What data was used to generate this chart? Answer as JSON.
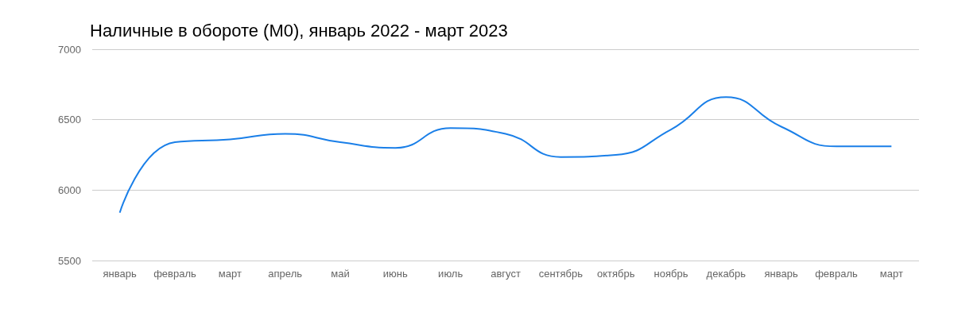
{
  "chart_data": {
    "type": "line",
    "title": "Наличные в обороте (М0), январь 2022 - март 2023",
    "categories": [
      "январь",
      "февраль",
      "март",
      "апрель",
      "май",
      "июнь",
      "июль",
      "август",
      "сентябрь",
      "октябрь",
      "ноябрь",
      "декабрь",
      "январь",
      "февраль",
      "март"
    ],
    "series": [
      {
        "color": "#1a7fe8",
        "values": [
          5840,
          6340,
          6360,
          6400,
          6340,
          6300,
          6440,
          6400,
          6235,
          6250,
          6430,
          6660,
          6450,
          6310,
          6310
        ]
      }
    ],
    "ylim": [
      5500,
      7000
    ],
    "yticks": [
      5500,
      6000,
      6500,
      7000
    ],
    "grid": "y",
    "marker": "none",
    "line_style": "solid"
  }
}
